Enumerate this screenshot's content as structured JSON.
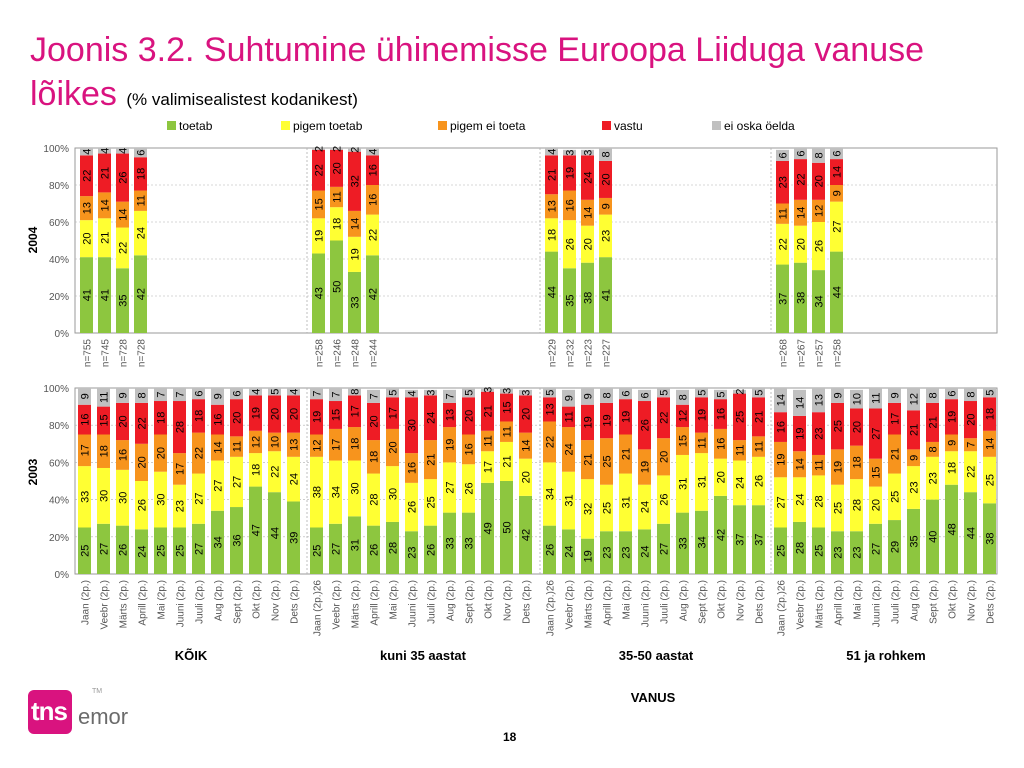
{
  "title": "Joonis 3.2. Suhtumine ühinemisse Euroopa Liiduga vanuse lõikes",
  "subtitle": "(% valimisealistest kodanikest)",
  "page_number": "18",
  "logo": {
    "brand": "tns",
    "sub": "emor",
    "tm": "TM"
  },
  "colors": {
    "toetab": "#8dc63f",
    "pigem_toetab": "#ffff33",
    "pigem_ei_toeta": "#f7941d",
    "vastu": "#ee1c25",
    "ei_oska": "#c0c0c0",
    "title": "#d9137f"
  },
  "chart_data": {
    "type": "bar",
    "stacked": true,
    "legend": [
      "toetab",
      "pigem toetab",
      "pigem ei toeta",
      "vastu",
      "ei oska öelda"
    ],
    "legend_position": "top",
    "group_labels": [
      "KÕIK",
      "kuni 35 aastat",
      "35-50 aastat",
      "51 ja rohkem"
    ],
    "xlabel": "VANUS",
    "ylim": [
      0,
      100
    ],
    "yticks": [
      "0%",
      "20%",
      "40%",
      "60%",
      "80%",
      "100%"
    ],
    "panels": [
      {
        "label": "2004",
        "groups": [
          {
            "bars": [
              {
                "n": "n=755",
                "values": [
                  41,
                  20,
                  13,
                  22,
                  4
                ]
              },
              {
                "n": "n=745",
                "values": [
                  41,
                  21,
                  14,
                  21,
                  4
                ]
              },
              {
                "n": "n=728",
                "values": [
                  35,
                  22,
                  14,
                  26,
                  4
                ]
              },
              {
                "n": "n=728",
                "values": [
                  42,
                  24,
                  11,
                  18,
                  6
                ]
              }
            ]
          },
          {
            "bars": [
              {
                "n": "n=258",
                "values": [
                  43,
                  19,
                  15,
                  22,
                  2
                ]
              },
              {
                "n": "n=246",
                "values": [
                  50,
                  18,
                  11,
                  20,
                  2
                ]
              },
              {
                "n": "n=248",
                "values": [
                  33,
                  19,
                  14,
                  32,
                  2
                ]
              },
              {
                "n": "n=244",
                "values": [
                  42,
                  22,
                  16,
                  16,
                  4
                ]
              }
            ]
          },
          {
            "bars": [
              {
                "n": "n=229",
                "values": [
                  44,
                  18,
                  13,
                  21,
                  4
                ]
              },
              {
                "n": "n=232",
                "values": [
                  35,
                  26,
                  16,
                  19,
                  3
                ]
              },
              {
                "n": "n=223",
                "values": [
                  38,
                  20,
                  14,
                  24,
                  3
                ]
              },
              {
                "n": "n=227",
                "values": [
                  41,
                  23,
                  9,
                  20,
                  8
                ]
              }
            ]
          },
          {
            "bars": [
              {
                "n": "n=268",
                "values": [
                  37,
                  22,
                  11,
                  23,
                  6
                ]
              },
              {
                "n": "n=267",
                "values": [
                  38,
                  20,
                  14,
                  22,
                  6
                ]
              },
              {
                "n": "n=257",
                "values": [
                  34,
                  26,
                  12,
                  20,
                  8
                ]
              },
              {
                "n": "n=258",
                "values": [
                  44,
                  27,
                  9,
                  14,
                  6
                ]
              }
            ]
          }
        ]
      },
      {
        "label": "2003",
        "groups": [
          {
            "bars": [
              {
                "c": "Jaan (2p.)",
                "values": [
                  25,
                  33,
                  17,
                  16,
                  9
                ]
              },
              {
                "c": "Veebr (2p.)",
                "values": [
                  27,
                  30,
                  18,
                  15,
                  11
                ]
              },
              {
                "c": "Märts (2p.)",
                "values": [
                  26,
                  30,
                  16,
                  20,
                  9
                ]
              },
              {
                "c": "Aprill (2p.)",
                "values": [
                  24,
                  26,
                  20,
                  22,
                  8
                ]
              },
              {
                "c": "Mai (2p.)",
                "values": [
                  25,
                  30,
                  20,
                  18,
                  7
                ]
              },
              {
                "c": "Juuni (2p.)",
                "values": [
                  25,
                  23,
                  17,
                  28,
                  7
                ]
              },
              {
                "c": "Juuli (2p.)",
                "values": [
                  27,
                  27,
                  22,
                  18,
                  6
                ]
              },
              {
                "c": "Aug (2p.)",
                "values": [
                  34,
                  27,
                  14,
                  16,
                  9
                ]
              },
              {
                "c": "Sept (2p.)",
                "values": [
                  36,
                  27,
                  11,
                  20,
                  6
                ]
              },
              {
                "c": "Okt (2p.)",
                "values": [
                  47,
                  18,
                  12,
                  19,
                  4
                ]
              },
              {
                "c": "Nov (2p.)",
                "values": [
                  44,
                  22,
                  10,
                  20,
                  5
                ]
              },
              {
                "c": "Dets (2p.)",
                "values": [
                  39,
                  24,
                  13,
                  20,
                  4
                ]
              }
            ]
          },
          {
            "bars": [
              {
                "c": "Jaan (2p.)26",
                "values": [
                  25,
                  38,
                  12,
                  19,
                  7
                ]
              },
              {
                "c": "Veebr (2p.)",
                "values": [
                  27,
                  34,
                  17,
                  15,
                  7
                ]
              },
              {
                "c": "Märts (2p.)",
                "values": [
                  31,
                  30,
                  18,
                  17,
                  8
                ]
              },
              {
                "c": "Aprill (2p.)",
                "values": [
                  26,
                  28,
                  18,
                  20,
                  7
                ]
              },
              {
                "c": "Mai (2p.)",
                "values": [
                  28,
                  30,
                  20,
                  17,
                  5
                ]
              },
              {
                "c": "Juuni (2p.)",
                "values": [
                  23,
                  26,
                  16,
                  30,
                  4
                ]
              },
              {
                "c": "Juuli (2p.)",
                "values": [
                  26,
                  25,
                  21,
                  24,
                  3
                ]
              },
              {
                "c": "Aug (2p.)",
                "values": [
                  33,
                  27,
                  19,
                  13,
                  7
                ]
              },
              {
                "c": "Sept (2p.)",
                "values": [
                  33,
                  26,
                  16,
                  20,
                  5
                ]
              },
              {
                "c": "Okt (2p.)",
                "values": [
                  49,
                  17,
                  11,
                  21,
                  3
                ]
              },
              {
                "c": "Nov (2p.)",
                "values": [
                  50,
                  21,
                  11,
                  15,
                  3
                ]
              },
              {
                "c": "Dets (2p.)",
                "values": [
                  42,
                  20,
                  14,
                  20,
                  3
                ]
              }
            ]
          },
          {
            "bars": [
              {
                "c": "Jaan (2p.)26",
                "values": [
                  26,
                  34,
                  22,
                  13,
                  5
                ]
              },
              {
                "c": "Veebr (2p.)",
                "values": [
                  24,
                  31,
                  24,
                  11,
                  9
                ]
              },
              {
                "c": "Märts (2p.)",
                "values": [
                  19,
                  32,
                  21,
                  19,
                  9
                ]
              },
              {
                "c": "Aprill (2p.)",
                "values": [
                  23,
                  25,
                  25,
                  19,
                  8
                ]
              },
              {
                "c": "Mai (2p.)",
                "values": [
                  23,
                  31,
                  21,
                  19,
                  6
                ]
              },
              {
                "c": "Juuni (2p.)",
                "values": [
                  24,
                  24,
                  19,
                  26,
                  6
                ]
              },
              {
                "c": "Juuli (2p.)",
                "values": [
                  27,
                  26,
                  20,
                  22,
                  5
                ]
              },
              {
                "c": "Aug (2p.)",
                "values": [
                  33,
                  31,
                  15,
                  12,
                  8
                ]
              },
              {
                "c": "Sept (2p.)",
                "values": [
                  34,
                  31,
                  11,
                  19,
                  5
                ]
              },
              {
                "c": "Okt (2p.)",
                "values": [
                  42,
                  20,
                  16,
                  16,
                  5
                ]
              },
              {
                "c": "Nov (2p.)",
                "values": [
                  37,
                  24,
                  11,
                  25,
                  2
                ]
              },
              {
                "c": "Dets (2p.)",
                "values": [
                  37,
                  26,
                  11,
                  21,
                  5
                ]
              }
            ]
          },
          {
            "bars": [
              {
                "c": "Jaan (2p.)26",
                "values": [
                  25,
                  27,
                  19,
                  16,
                  14
                ]
              },
              {
                "c": "Veebr (2p.)",
                "values": [
                  28,
                  24,
                  14,
                  19,
                  14
                ]
              },
              {
                "c": "Märts (2p.)",
                "values": [
                  25,
                  28,
                  11,
                  23,
                  13
                ]
              },
              {
                "c": "Aprill (2p.)",
                "values": [
                  23,
                  25,
                  19,
                  25,
                  9
                ]
              },
              {
                "c": "Mai (2p.)",
                "values": [
                  23,
                  28,
                  18,
                  20,
                  10
                ]
              },
              {
                "c": "Juuni (2p.)",
                "values": [
                  27,
                  20,
                  15,
                  27,
                  11
                ]
              },
              {
                "c": "Juuli (2p.)",
                "values": [
                  29,
                  25,
                  21,
                  17,
                  9
                ]
              },
              {
                "c": "Aug (2p.)",
                "values": [
                  35,
                  23,
                  9,
                  21,
                  12
                ]
              },
              {
                "c": "Sept (2p.)",
                "values": [
                  40,
                  23,
                  8,
                  21,
                  8
                ]
              },
              {
                "c": "Okt (2p.)",
                "values": [
                  48,
                  18,
                  9,
                  19,
                  6
                ]
              },
              {
                "c": "Nov (2p.)",
                "values": [
                  44,
                  22,
                  7,
                  20,
                  8
                ]
              },
              {
                "c": "Dets (2p.)",
                "values": [
                  38,
                  25,
                  14,
                  18,
                  5
                ]
              }
            ]
          }
        ]
      }
    ]
  }
}
